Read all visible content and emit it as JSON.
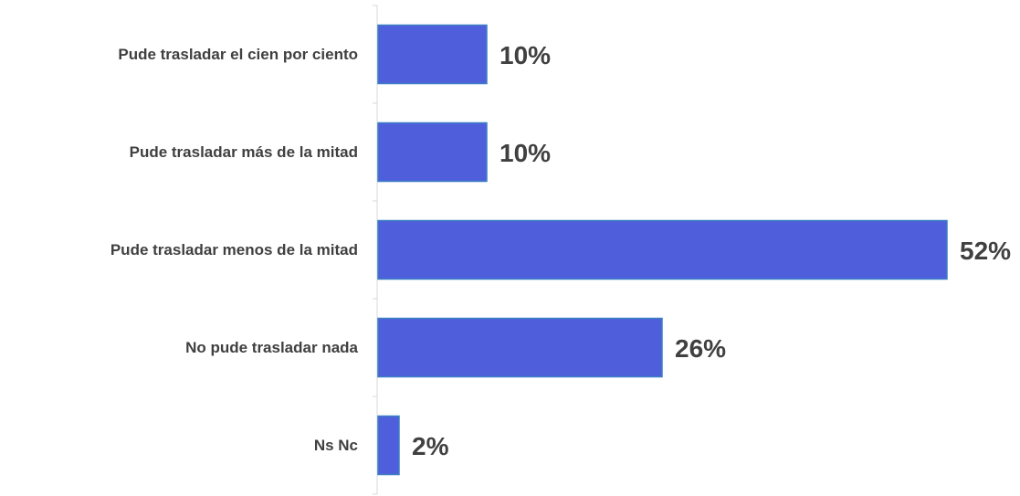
{
  "chart_data": {
    "type": "bar",
    "orientation": "horizontal",
    "categories": [
      "Pude trasladar el cien por ciento",
      "Pude trasladar más de la mitad",
      "Pude trasladar menos de la mitad",
      "No pude trasladar nada",
      "Ns Nc"
    ],
    "values": [
      10,
      10,
      52,
      26,
      2
    ],
    "value_labels": [
      "10%",
      "10%",
      "52%",
      "26%",
      "2%"
    ],
    "unit": "%",
    "xlim": [
      0,
      52
    ],
    "grid": false,
    "legend": "none",
    "colors": {
      "bar_fill": "#4F5EDB",
      "bar_stroke": "#3D7FC4",
      "text": "#404040",
      "axis": "#D9D9D9"
    }
  }
}
